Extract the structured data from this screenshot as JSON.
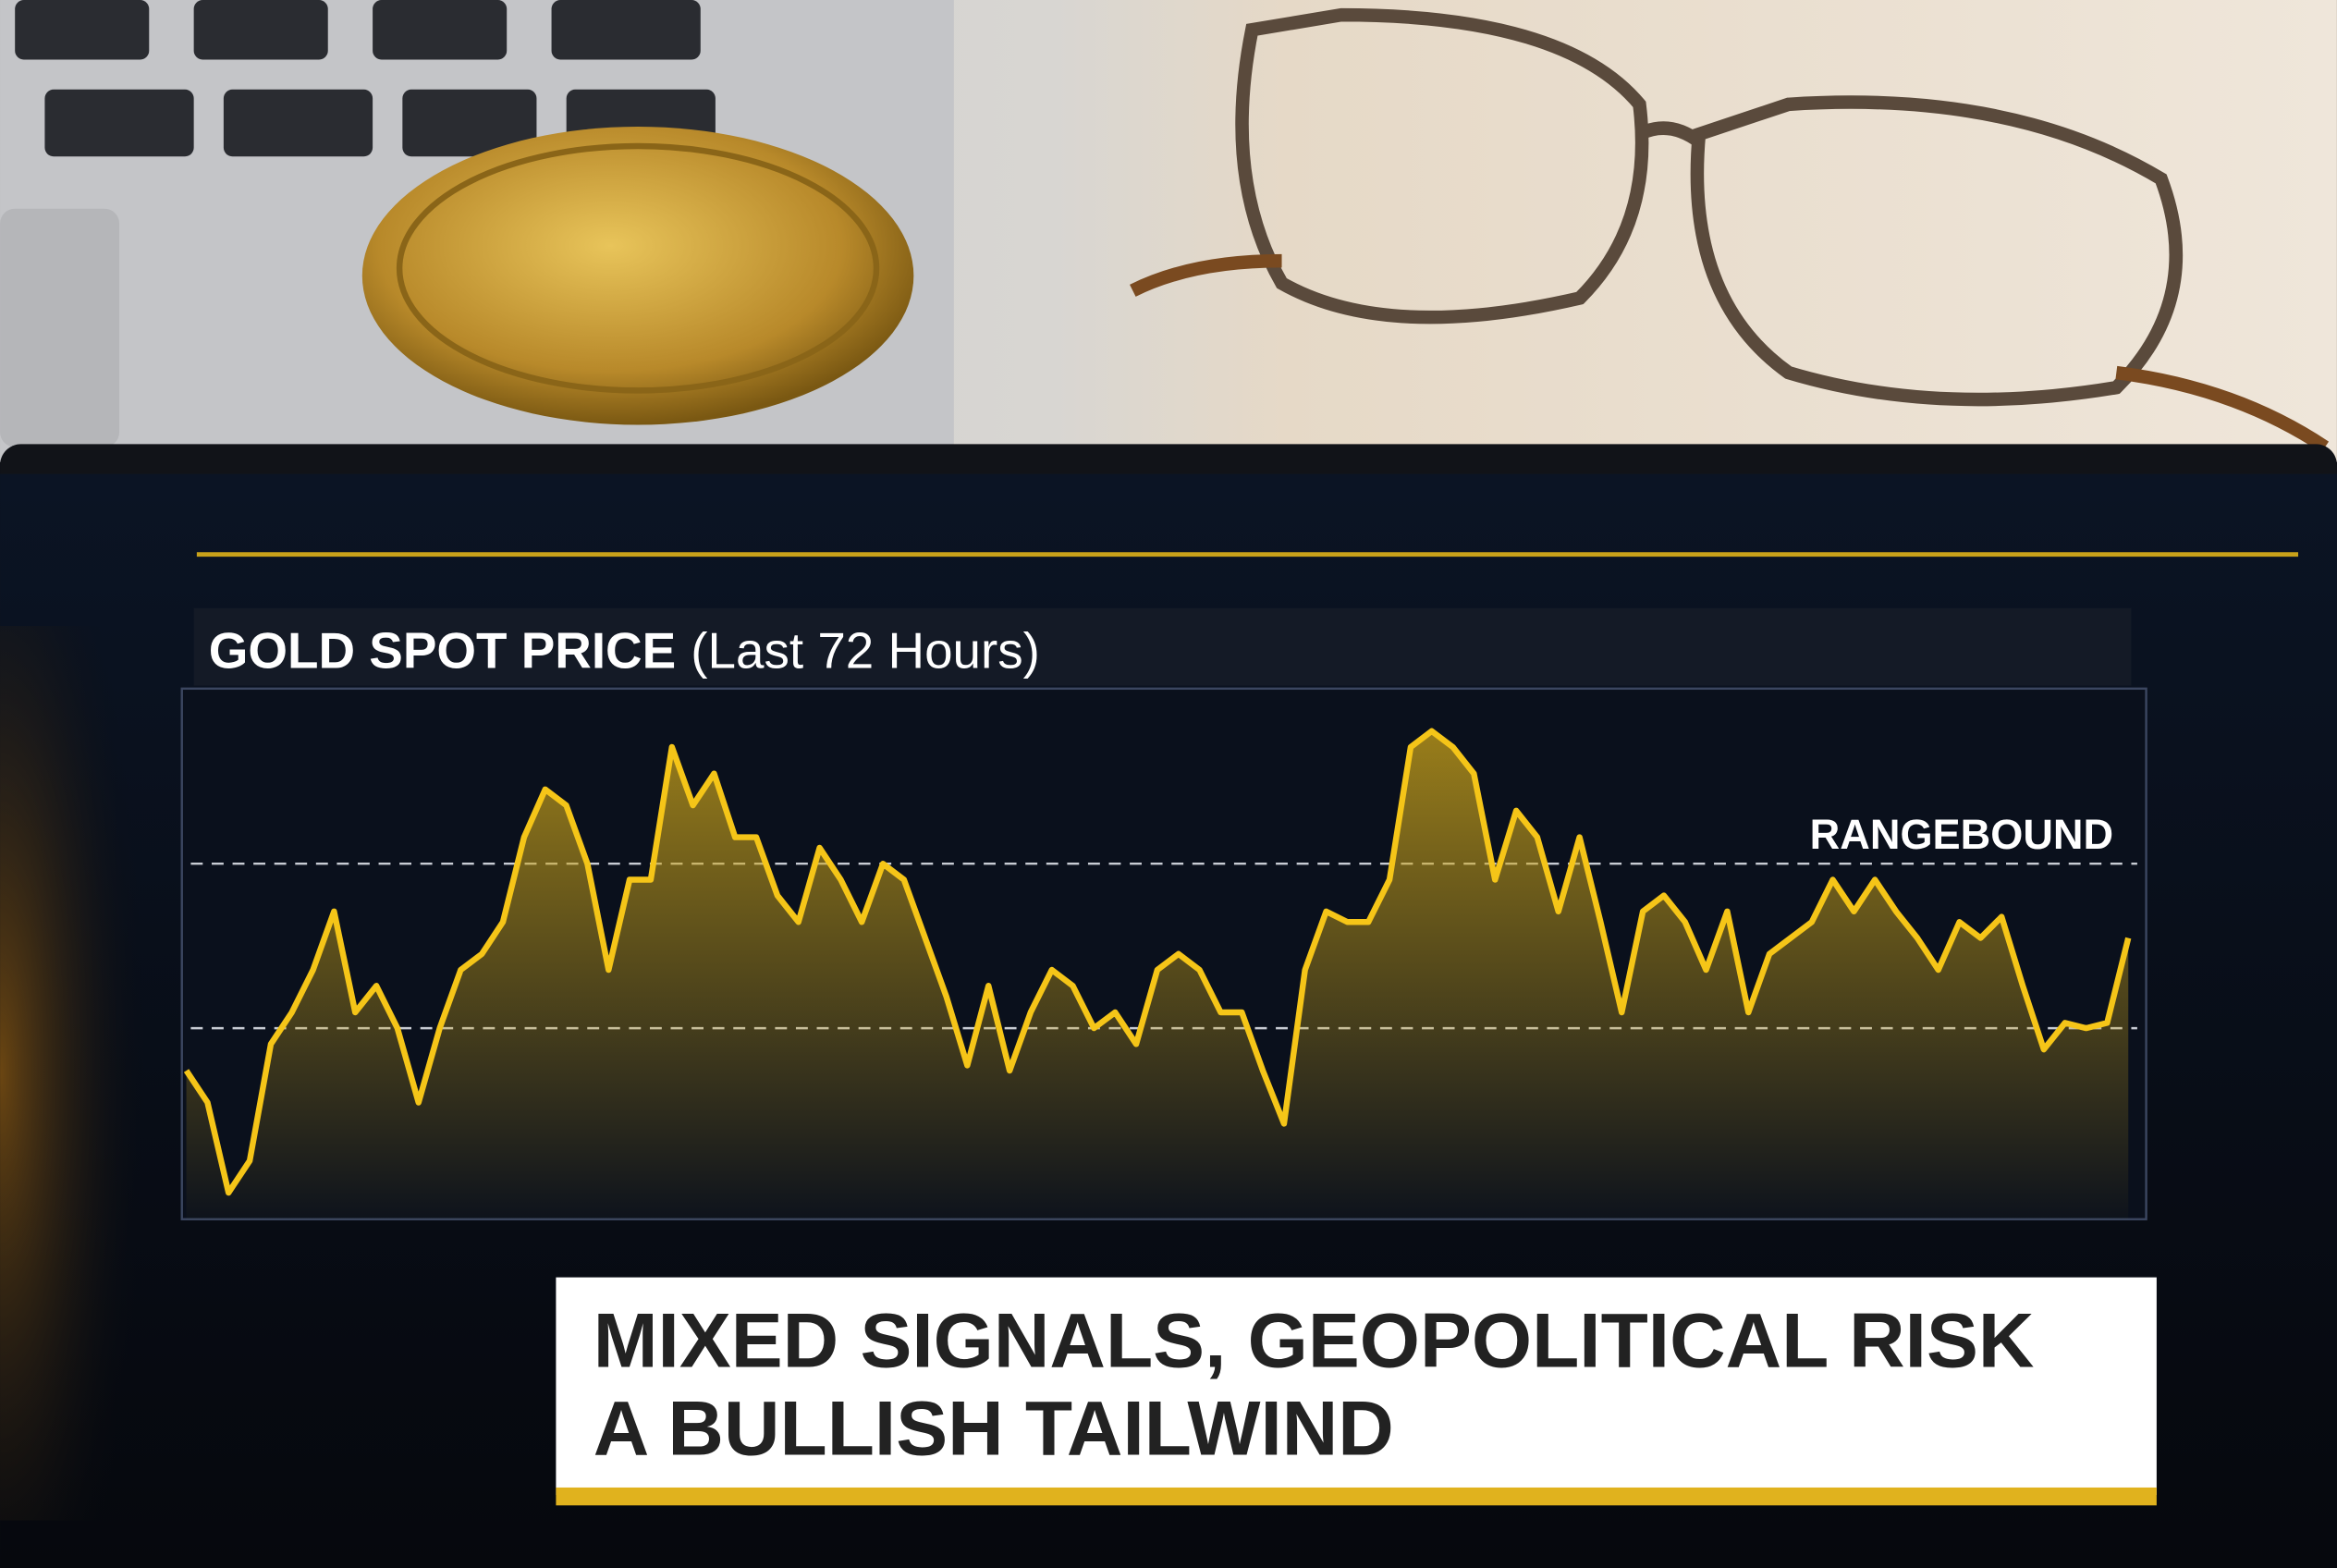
{
  "chart_data": {
    "type": "line",
    "title": "GOLD SPOT PRICE",
    "subtitle": "(Last 72 Hours)",
    "annotation": "RANGEBOUND",
    "headline": [
      "MIXED SIGNALS, GEOPOLITICAL RISK",
      "A BULLISH TAILWIND"
    ],
    "ylim": [
      0,
      100
    ],
    "reference_lines": [
      36,
      67
    ],
    "series": [
      {
        "color": "#f5c518",
        "values": [
          28,
          22,
          5,
          11,
          33,
          39,
          47,
          58,
          39,
          44,
          36,
          22,
          36,
          47,
          50,
          56,
          72,
          81,
          78,
          67,
          47,
          64,
          64,
          89,
          78,
          84,
          72,
          72,
          61,
          56,
          70,
          64,
          56,
          67,
          64,
          53,
          42,
          29,
          44,
          28,
          39,
          47,
          44,
          36,
          39,
          33,
          47,
          50,
          47,
          39,
          39,
          28,
          18,
          47,
          58,
          56,
          56,
          64,
          89,
          92,
          89,
          84,
          64,
          77,
          72,
          58,
          72,
          56,
          39,
          58,
          61,
          56,
          47,
          58,
          39,
          50,
          53,
          56,
          64,
          58,
          64,
          58,
          53,
          47,
          56,
          53,
          57,
          44,
          32,
          37,
          36,
          37,
          53
        ]
      }
    ]
  }
}
